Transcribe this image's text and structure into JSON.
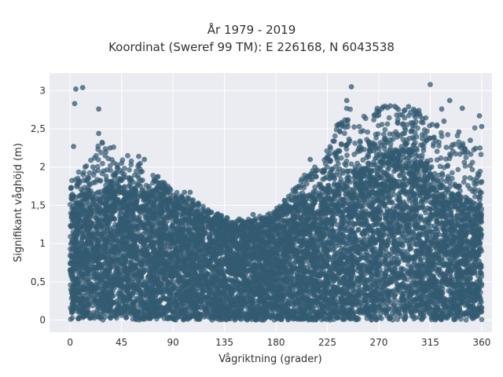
{
  "chart_data": {
    "type": "scatter",
    "title_lines": [
      "År 1979 - 2019",
      "Koordinat (Sweref 99 TM): E 226168, N 6043538"
    ],
    "xlabel": "Vågriktning (grader)",
    "ylabel": "Signifikant våghöjd (m)",
    "xlim": [
      -18,
      369
    ],
    "ylim": [
      -0.16,
      3.23
    ],
    "x_ticks": [
      0,
      45,
      90,
      135,
      180,
      225,
      270,
      315,
      360
    ],
    "x_tick_labels": [
      "0",
      "45",
      "90",
      "135",
      "180",
      "225",
      "270",
      "315",
      "360"
    ],
    "y_ticks": [
      0,
      0.5,
      1,
      1.5,
      2,
      2.5,
      3
    ],
    "y_tick_labels": [
      "0",
      "0,5",
      "1",
      "1,5",
      "2",
      "2,5",
      "3"
    ],
    "grid": true,
    "background_color": "#EBEBF2",
    "point_color": "#325A70",
    "envelope": {
      "x": [
        0,
        15,
        30,
        45,
        60,
        75,
        90,
        105,
        120,
        135,
        150,
        165,
        180,
        195,
        210,
        225,
        240,
        255,
        270,
        285,
        300,
        315,
        330,
        345,
        360
      ],
      "dense_top": [
        1.45,
        1.6,
        1.7,
        1.65,
        1.65,
        1.6,
        1.5,
        1.4,
        1.3,
        1.2,
        1.15,
        1.2,
        1.3,
        1.45,
        1.55,
        1.7,
        1.8,
        1.95,
        2.05,
        2.2,
        2.2,
        1.9,
        1.65,
        1.6,
        1.5
      ],
      "max": [
        1.8,
        2.1,
        2.4,
        2.2,
        2.1,
        1.9,
        1.7,
        1.6,
        1.45,
        1.35,
        1.3,
        1.35,
        1.45,
        1.7,
        2.0,
        2.3,
        2.8,
        2.7,
        2.8,
        2.8,
        2.8,
        2.6,
        2.5,
        2.4,
        2.6
      ]
    },
    "outliers": [
      {
        "x": 5,
        "y": 3.02
      },
      {
        "x": 11,
        "y": 3.04
      },
      {
        "x": 4,
        "y": 2.83
      },
      {
        "x": 25,
        "y": 2.76
      },
      {
        "x": 3,
        "y": 2.27
      },
      {
        "x": 25,
        "y": 2.44
      },
      {
        "x": 246,
        "y": 3.05
      },
      {
        "x": 315,
        "y": 3.08
      },
      {
        "x": 242,
        "y": 2.87
      },
      {
        "x": 332,
        "y": 2.87
      },
      {
        "x": 325,
        "y": 2.76
      },
      {
        "x": 343,
        "y": 2.77
      },
      {
        "x": 358,
        "y": 2.67
      },
      {
        "x": 360,
        "y": 2.53
      },
      {
        "x": 230,
        "y": 2.34
      },
      {
        "x": 238,
        "y": 2.55
      },
      {
        "x": 270,
        "y": 2.73
      },
      {
        "x": 280,
        "y": 2.8
      },
      {
        "x": 296,
        "y": 2.79
      },
      {
        "x": 305,
        "y": 2.74
      },
      {
        "x": 327,
        "y": 2.6
      },
      {
        "x": 340,
        "y": 2.46
      },
      {
        "x": 350,
        "y": 2.35
      },
      {
        "x": 345,
        "y": 2.24
      },
      {
        "x": 210,
        "y": 2.1
      },
      {
        "x": 215,
        "y": 1.95
      },
      {
        "x": 100,
        "y": 1.67
      },
      {
        "x": 105,
        "y": 1.67
      },
      {
        "x": 120,
        "y": 1.4
      },
      {
        "x": 136,
        "y": 1.3
      },
      {
        "x": 148,
        "y": 1.32
      },
      {
        "x": 160,
        "y": 1.38
      },
      {
        "x": 195,
        "y": 1.7
      },
      {
        "x": 200,
        "y": 1.75
      },
      {
        "x": 60,
        "y": 2.14
      },
      {
        "x": 65,
        "y": 2.1
      },
      {
        "x": 20,
        "y": 2.0
      },
      {
        "x": 35,
        "y": 2.25
      },
      {
        "x": 45,
        "y": 2.05
      },
      {
        "x": 87,
        "y": 1.72
      }
    ]
  }
}
